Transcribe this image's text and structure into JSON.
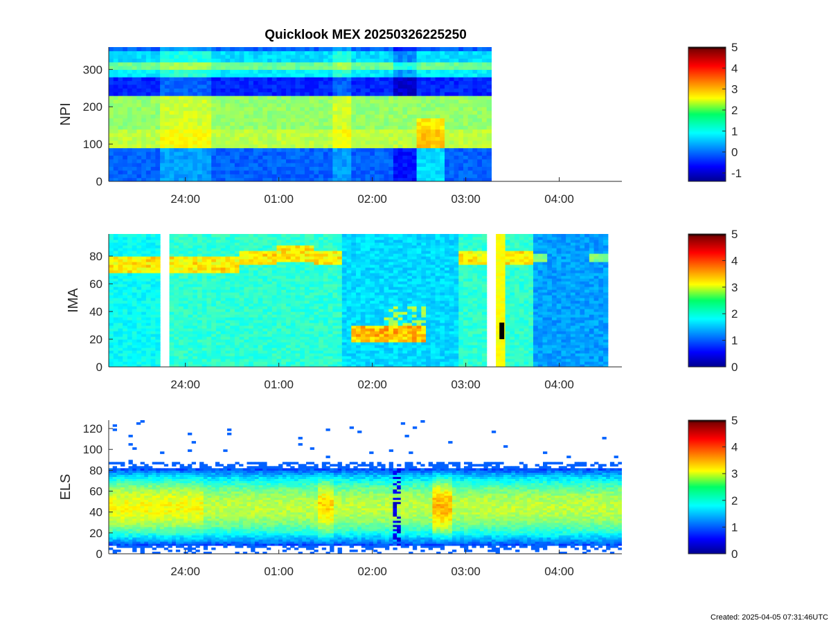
{
  "figure": {
    "title": "Quicklook MEX 20250326225250",
    "footer": "Created: 2025-04-05 07:31:46UTC"
  },
  "chart_data": [
    {
      "type": "heatmap",
      "id": "npi",
      "ylabel": "NPI",
      "xlabel": "",
      "x_ticks": [
        "24:00",
        "01:00",
        "02:00",
        "03:00",
        "04:00"
      ],
      "x_tick_hours": [
        24.0,
        25.0,
        26.0,
        27.0,
        28.0
      ],
      "xlim_hours": [
        23.18,
        28.67
      ],
      "ylim": [
        0,
        360
      ],
      "y_ticks": [
        0,
        100,
        200,
        300
      ],
      "data_end_hour": 27.28,
      "colorbar": {
        "ticks": [
          "5",
          "4",
          "3",
          "2",
          "1",
          "0",
          "-1"
        ],
        "range": [
          -1.4,
          5
        ]
      }
    },
    {
      "type": "heatmap",
      "id": "ima",
      "ylabel": "IMA",
      "xlabel": "",
      "x_ticks": [
        "24:00",
        "01:00",
        "02:00",
        "03:00",
        "04:00"
      ],
      "x_tick_hours": [
        24.0,
        25.0,
        26.0,
        27.0,
        28.0
      ],
      "xlim_hours": [
        23.18,
        28.67
      ],
      "ylim": [
        0,
        96
      ],
      "y_ticks": [
        0,
        20,
        40,
        60,
        80
      ],
      "data_gaps_hours": [
        [
          23.72,
          23.84
        ],
        [
          27.23,
          27.32
        ]
      ],
      "data_end_hour": 28.52,
      "colorbar": {
        "ticks": [
          "5",
          "4",
          "3",
          "2",
          "1",
          "0"
        ],
        "range": [
          0,
          5
        ]
      }
    },
    {
      "type": "heatmap",
      "id": "els",
      "ylabel": "ELS",
      "xlabel": "",
      "x_ticks": [
        "24:00",
        "01:00",
        "02:00",
        "03:00",
        "04:00"
      ],
      "x_tick_hours": [
        24.0,
        25.0,
        26.0,
        27.0,
        28.0
      ],
      "xlim_hours": [
        23.18,
        28.67
      ],
      "ylim": [
        0,
        128
      ],
      "y_ticks": [
        0,
        20,
        40,
        60,
        80,
        100,
        120
      ],
      "colorbar": {
        "ticks": [
          "5",
          "4",
          "3",
          "2",
          "1",
          "0"
        ],
        "range": [
          0,
          5
        ]
      }
    }
  ]
}
